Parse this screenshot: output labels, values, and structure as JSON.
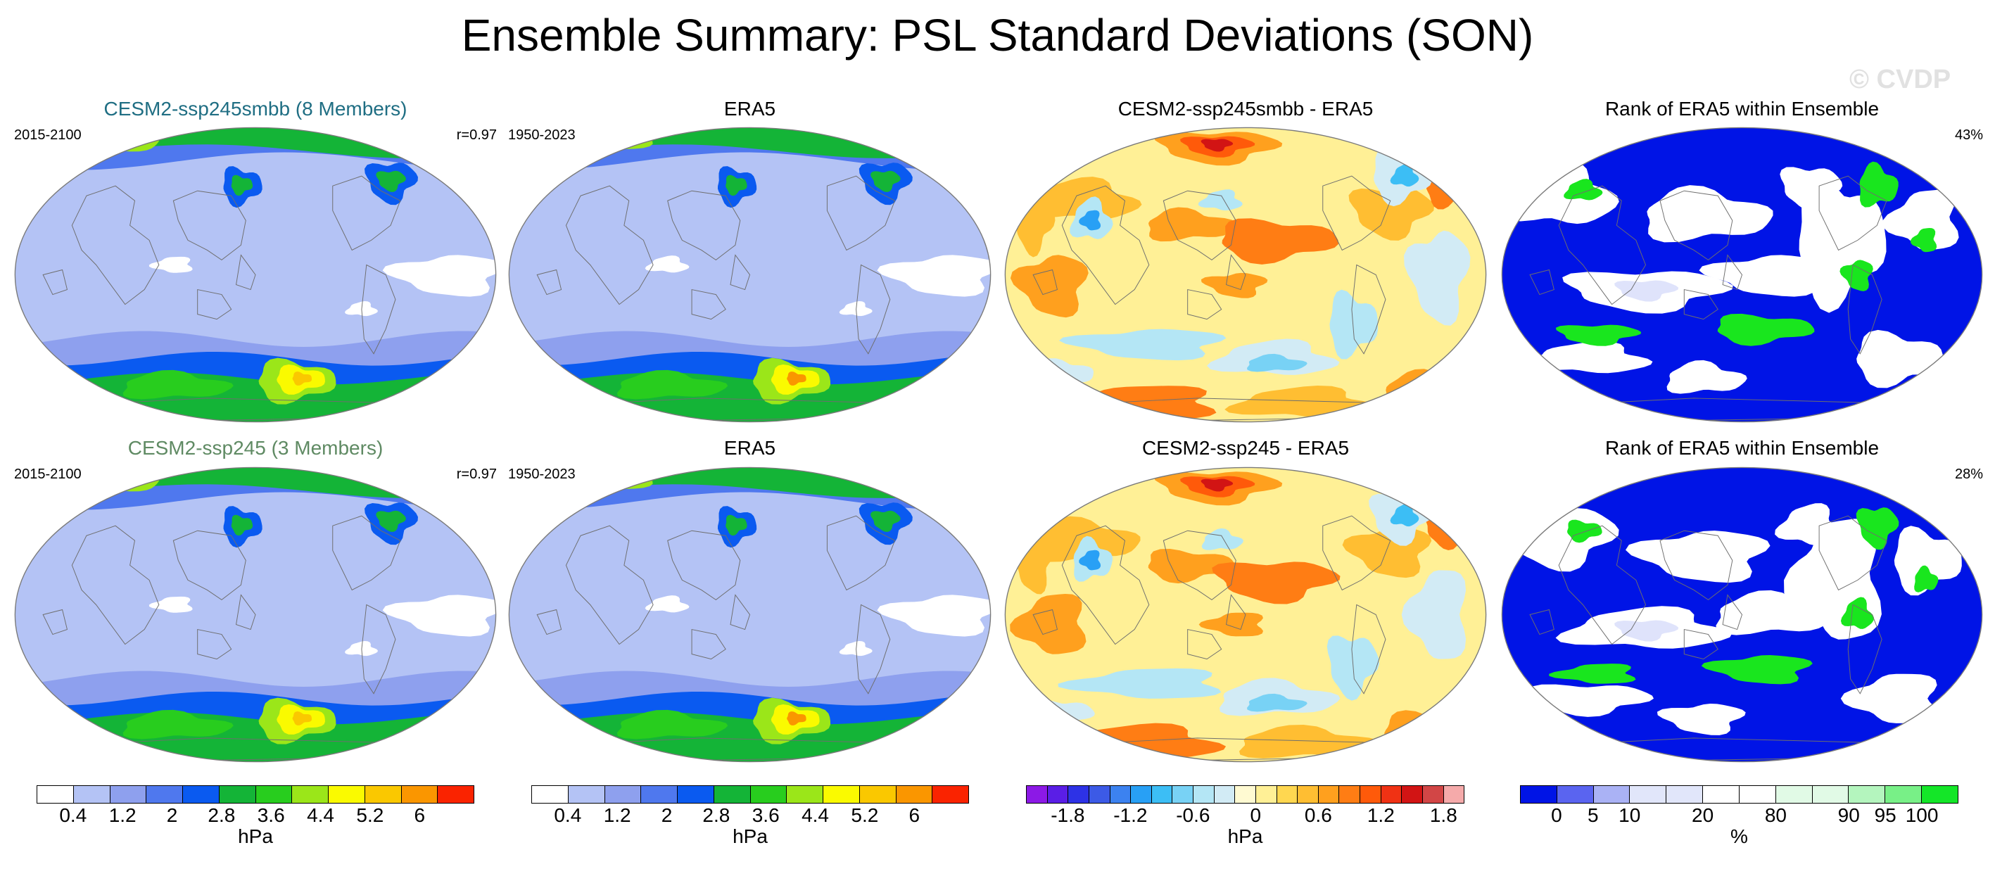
{
  "title": "Ensemble Summary: PSL Standard Deviations (SON)",
  "watermark": "© CVDP",
  "rows": [
    {
      "panels": [
        {
          "type": "sd",
          "title": "CESM2-ssp245smbb (8 Members)",
          "title_color": "#1f6e83",
          "left": "2015-2100",
          "right": "r=0.97",
          "variant": 0
        },
        {
          "type": "sd",
          "title": "ERA5",
          "title_color": "#000000",
          "left": "1950-2023",
          "right": "",
          "variant": 1
        },
        {
          "type": "diff",
          "title": "CESM2-ssp245smbb - ERA5",
          "title_color": "#000000",
          "left": "",
          "right": "",
          "variant": 0
        },
        {
          "type": "rank",
          "title": "Rank of ERA5 within Ensemble",
          "title_color": "#000000",
          "left": "",
          "right": "43%",
          "variant": 0
        }
      ]
    },
    {
      "panels": [
        {
          "type": "sd",
          "title": "CESM2-ssp245 (3 Members)",
          "title_color": "#5f8a63",
          "left": "2015-2100",
          "right": "r=0.97",
          "variant": 0
        },
        {
          "type": "sd",
          "title": "ERA5",
          "title_color": "#000000",
          "left": "1950-2023",
          "right": "",
          "variant": 1
        },
        {
          "type": "diff",
          "title": "CESM2-ssp245 - ERA5",
          "title_color": "#000000",
          "left": "",
          "right": "",
          "variant": 1
        },
        {
          "type": "rank",
          "title": "Rank of ERA5 within Ensemble",
          "title_color": "#000000",
          "left": "",
          "right": "28%",
          "variant": 1
        }
      ]
    }
  ],
  "colorbars": [
    {
      "colors": [
        "#ffffff",
        "#b4c3f5",
        "#8ea0ee",
        "#4f78ee",
        "#0a5af0",
        "#14b437",
        "#28cd1e",
        "#9be619",
        "#fafa00",
        "#fac800",
        "#fa9600",
        "#fa2300"
      ],
      "ticks": [
        "0.4",
        "1.2",
        "2",
        "2.8",
        "3.6",
        "4.4",
        "5.2",
        "6"
      ],
      "unit": "hPa"
    },
    {
      "colors": [
        "#ffffff",
        "#b4c3f5",
        "#8ea0ee",
        "#4f78ee",
        "#0a5af0",
        "#14b437",
        "#28cd1e",
        "#9be619",
        "#fafa00",
        "#fac800",
        "#fa9600",
        "#fa2300"
      ],
      "ticks": [
        "0.4",
        "1.2",
        "2",
        "2.8",
        "3.6",
        "4.4",
        "5.2",
        "6"
      ],
      "unit": "hPa"
    },
    {
      "colors": [
        "#8c19e6",
        "#5a1ee6",
        "#2d32e6",
        "#3c5ae6",
        "#3c82f0",
        "#28a0f5",
        "#3cbef5",
        "#78d2f5",
        "#b4e6f5",
        "#d2ebf5",
        "#fffad2",
        "#fff096",
        "#ffd750",
        "#ffbe32",
        "#ffa01e",
        "#ff7d14",
        "#ff5a0a",
        "#f03214",
        "#d21414",
        "#d24646",
        "#f5aaaa"
      ],
      "ticks": [
        "-1.8",
        "-1.2",
        "-0.6",
        "0",
        "0.6",
        "1.2",
        "1.8"
      ],
      "unit": "hPa"
    },
    {
      "colors": [
        "#0014e6",
        "#5a64f0",
        "#aab2f5",
        "#e1e6fa",
        "#e1e6fa",
        "#ffffff",
        "#ffffff",
        "#e1fae6",
        "#e1fae6",
        "#b4f5be",
        "#78f087",
        "#14e628"
      ],
      "ticks": [
        "0",
        "5",
        "10",
        "20",
        "80",
        "90",
        "95",
        "100"
      ],
      "unit": "%"
    }
  ]
}
